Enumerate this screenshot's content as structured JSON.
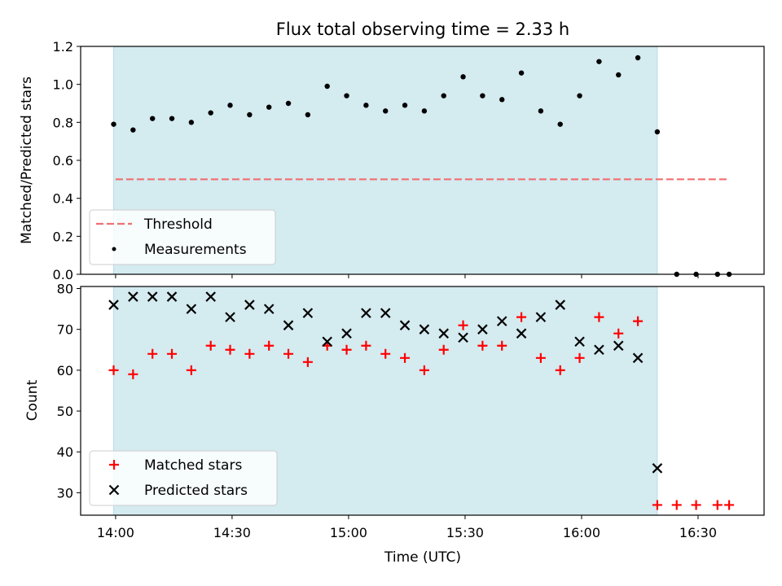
{
  "chart_data": {
    "title": "Flux total observing time = 2.33 h",
    "xlabel": "Time (UTC)",
    "x_ticks": [
      "14:00",
      "14:30",
      "15:00",
      "15:30",
      "16:00",
      "16:30"
    ],
    "x_tick_minutes": [
      0,
      30,
      60,
      90,
      120,
      150
    ],
    "xlim_minutes": [
      -9,
      167
    ],
    "observing_window_minutes": [
      -0.5,
      139.5
    ],
    "colors": {
      "window": "#d4ebf0",
      "threshold": "#f07070",
      "measurements": "#000000",
      "matched": "#ff0000",
      "predicted": "#000000"
    },
    "panels": [
      {
        "type": "scatter",
        "ylabel": "Matched/Predicted stars",
        "ylim": [
          0,
          1.2
        ],
        "y_ticks": [
          "0.0",
          "0.2",
          "0.4",
          "0.6",
          "0.8",
          "1.0",
          "1.2"
        ],
        "y_tick_values": [
          0,
          0.2,
          0.4,
          0.6,
          0.8,
          1.0,
          1.2
        ],
        "legend": [
          "Threshold",
          "Measurements"
        ],
        "legend_position": "lower-left",
        "threshold": {
          "value": 0.5,
          "x_range": [
            0,
            158
          ]
        },
        "measurements": {
          "x": [
            -0.5,
            4.5,
            9.5,
            14.5,
            19.5,
            24.5,
            29.5,
            34.5,
            39.5,
            44.5,
            49.5,
            54.5,
            59.5,
            64.5,
            69.5,
            74.5,
            79.5,
            84.5,
            89.5,
            94.5,
            99.5,
            104.5,
            109.5,
            114.5,
            119.5,
            124.5,
            129.5,
            134.5,
            139.5,
            144.5,
            149.5,
            155,
            158
          ],
          "y": [
            0.79,
            0.76,
            0.82,
            0.82,
            0.8,
            0.85,
            0.89,
            0.84,
            0.88,
            0.9,
            0.84,
            0.99,
            0.94,
            0.89,
            0.86,
            0.89,
            0.86,
            0.94,
            1.04,
            0.94,
            0.92,
            1.06,
            0.86,
            0.79,
            0.94,
            1.12,
            1.05,
            1.14,
            0.75,
            0.0,
            0.0,
            0.0,
            0.0
          ]
        }
      },
      {
        "type": "scatter",
        "ylabel": "Count",
        "ylim": [
          24.5,
          80.5
        ],
        "y_ticks": [
          "30",
          "40",
          "50",
          "60",
          "70",
          "80"
        ],
        "y_tick_values": [
          30,
          40,
          50,
          60,
          70,
          80
        ],
        "legend": [
          "Matched stars",
          "Predicted stars"
        ],
        "legend_position": "lower-left",
        "series": [
          {
            "name": "Matched stars",
            "marker": "plus",
            "x": [
              -0.5,
              4.5,
              9.5,
              14.5,
              19.5,
              24.5,
              29.5,
              34.5,
              39.5,
              44.5,
              49.5,
              54.5,
              59.5,
              64.5,
              69.5,
              74.5,
              79.5,
              84.5,
              89.5,
              94.5,
              99.5,
              104.5,
              109.5,
              114.5,
              119.5,
              124.5,
              129.5,
              134.5,
              139.5,
              144.5,
              149.5,
              155,
              158
            ],
            "y": [
              60,
              59,
              64,
              64,
              60,
              66,
              65,
              64,
              66,
              64,
              62,
              66,
              65,
              66,
              64,
              63,
              60,
              65,
              71,
              66,
              66,
              73,
              63,
              60,
              63,
              73,
              69,
              72,
              27,
              27,
              27,
              27,
              27
            ]
          },
          {
            "name": "Predicted stars",
            "marker": "x",
            "x": [
              -0.5,
              4.5,
              9.5,
              14.5,
              19.5,
              24.5,
              29.5,
              34.5,
              39.5,
              44.5,
              49.5,
              54.5,
              59.5,
              64.5,
              69.5,
              74.5,
              79.5,
              84.5,
              89.5,
              94.5,
              99.5,
              104.5,
              109.5,
              114.5,
              119.5,
              124.5,
              129.5,
              134.5,
              139.5
            ],
            "y": [
              76,
              78,
              78,
              78,
              75,
              78,
              73,
              76,
              75,
              71,
              74,
              67,
              69,
              74,
              74,
              71,
              70,
              69,
              68,
              70,
              72,
              69,
              73,
              76,
              67,
              65,
              66,
              63,
              36
            ]
          }
        ]
      }
    ]
  }
}
